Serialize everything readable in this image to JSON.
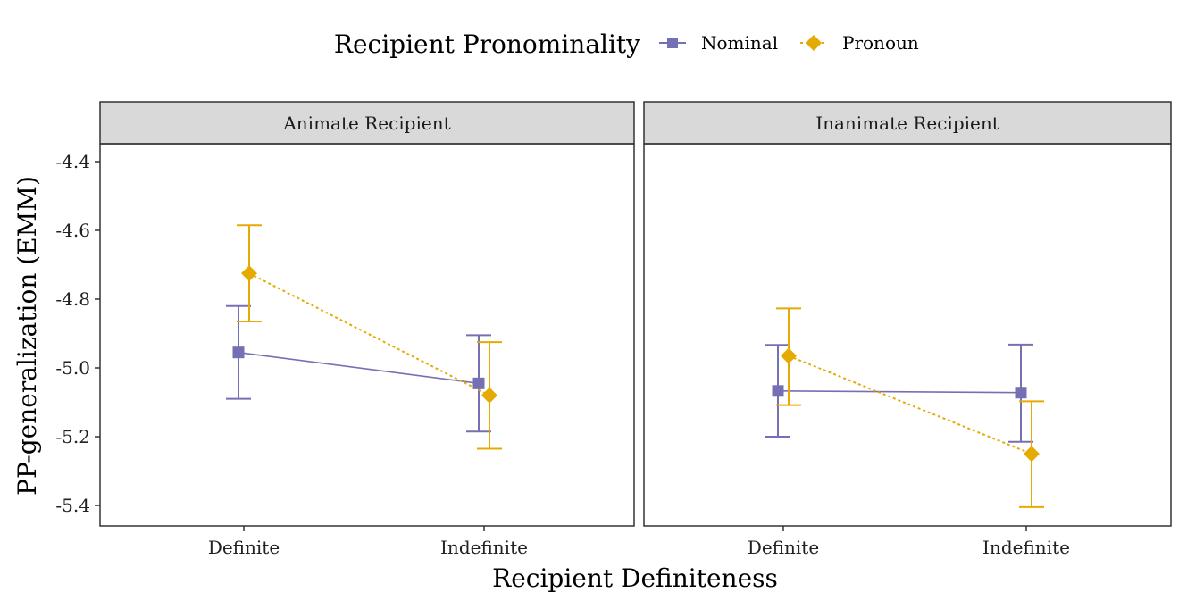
{
  "chart_data": {
    "type": "line",
    "xlabel": "Recipient Definiteness",
    "ylabel": "PP-generalization (EMM)",
    "categories": [
      "Definite",
      "Indefinite"
    ],
    "ylim": [
      -5.45,
      -4.2
    ],
    "yticks": [
      -4.4,
      -4.6,
      -4.8,
      -5.0,
      -5.2,
      -5.4
    ],
    "ytick_labels": [
      "-4.4",
      "-4.6",
      "-4.8",
      "-5.0",
      "-5.2",
      "-5.4"
    ],
    "grid": false,
    "legend": {
      "title": "Recipient Pronominality",
      "position": "top",
      "entries": [
        {
          "name": "Nominal",
          "color": "#7570B3",
          "marker": "square",
          "linestyle": "solid"
        },
        {
          "name": "Pronoun",
          "color": "#E6AB02",
          "marker": "diamond",
          "linestyle": "dotted"
        }
      ]
    },
    "panels": [
      {
        "title": "Animate Recipient",
        "series": [
          {
            "name": "Nominal",
            "values": [
              -4.955,
              -5.045
            ],
            "lower": [
              -5.09,
              -5.185
            ],
            "upper": [
              -4.82,
              -4.905
            ]
          },
          {
            "name": "Pronoun",
            "values": [
              -4.725,
              -5.08
            ],
            "lower": [
              -4.865,
              -5.235
            ],
            "upper": [
              -4.585,
              -4.925
            ]
          }
        ]
      },
      {
        "title": "Inanimate Recipient",
        "series": [
          {
            "name": "Nominal",
            "values": [
              -5.067,
              -5.072
            ],
            "lower": [
              -5.2,
              -5.215
            ],
            "upper": [
              -4.933,
              -4.932
            ]
          },
          {
            "name": "Pronoun",
            "values": [
              -4.965,
              -5.25
            ],
            "lower": [
              -5.108,
              -5.405
            ],
            "upper": [
              -4.827,
              -5.097
            ]
          }
        ]
      }
    ]
  }
}
